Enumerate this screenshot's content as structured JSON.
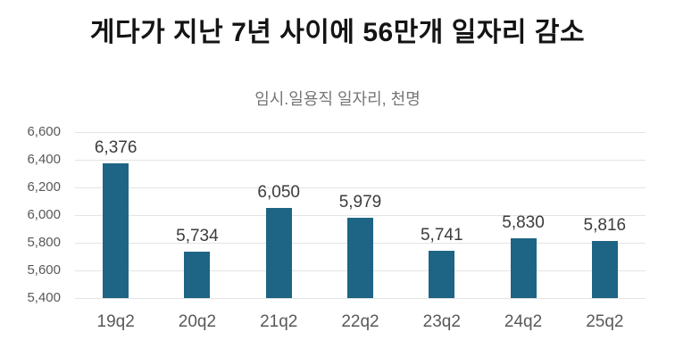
{
  "title": "게다가 지난 7년 사이에 56만개 일자리 감소",
  "chart_data": {
    "type": "bar",
    "title": "임시.일용직 일자리, 천명",
    "categories": [
      "19q2",
      "20q2",
      "21q2",
      "22q2",
      "23q2",
      "24q2",
      "25q2"
    ],
    "values": [
      6376,
      5734,
      6050,
      5979,
      5741,
      5830,
      5816
    ],
    "value_labels": [
      "6,376",
      "5,734",
      "6,050",
      "5,979",
      "5,741",
      "5,830",
      "5,816"
    ],
    "xlabel": "",
    "ylabel": "",
    "ylim": [
      5400,
      6600
    ],
    "ytick_step": 200,
    "ytick_labels": [
      "5,400",
      "5,600",
      "5,800",
      "6,000",
      "6,200",
      "6,400",
      "6,600"
    ],
    "grid": true,
    "legend": "none",
    "colors": {
      "bar": "#1e6484",
      "gridline": "#e4e4e4",
      "axis_label": "#595959",
      "data_label": "#3c3c3c",
      "title": "#141414",
      "subtitle": "#767676"
    }
  }
}
